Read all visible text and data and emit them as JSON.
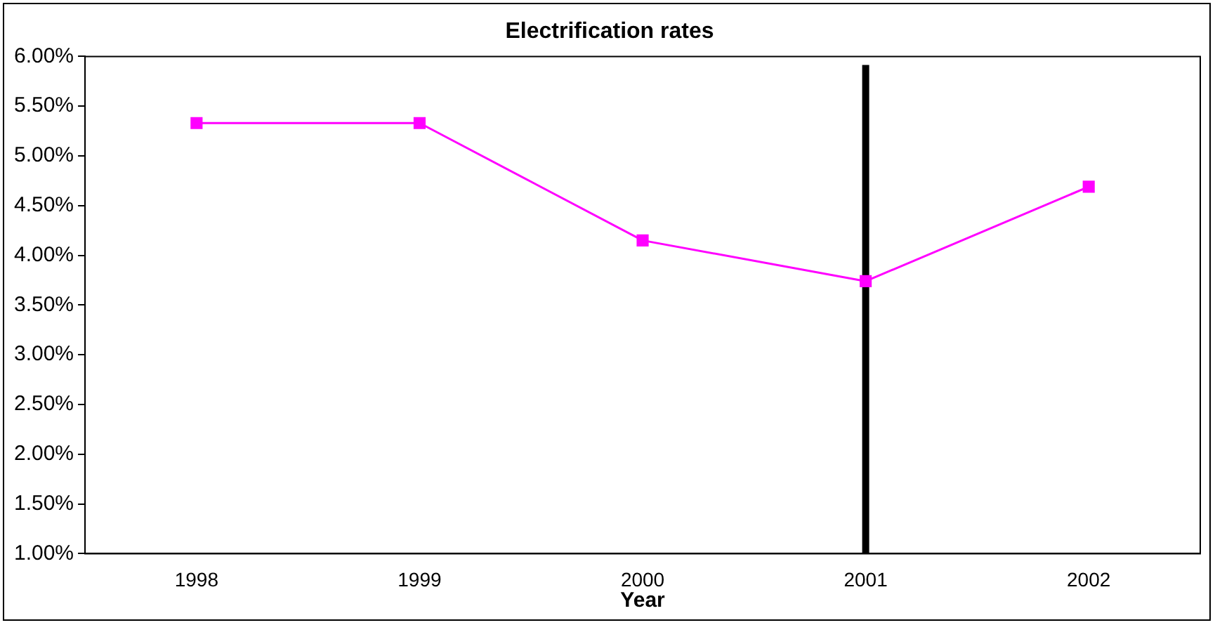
{
  "chart_data": {
    "type": "line",
    "title": "Electrification rates",
    "xlabel": "Year",
    "categories": [
      "1998",
      "1999",
      "2000",
      "2001",
      "2002"
    ],
    "series": [
      {
        "color": "#ff00ff",
        "values": [
          5.33,
          5.33,
          4.15,
          3.74,
          4.69
        ]
      }
    ],
    "ylim": [
      1,
      6
    ],
    "yticks": [
      {
        "value": 1,
        "label": "1.00%"
      },
      {
        "value": 1.5,
        "label": "1.50%"
      },
      {
        "value": 2,
        "label": "2.00%"
      },
      {
        "value": 2.5,
        "label": "2.50%"
      },
      {
        "value": 3,
        "label": "3.00%"
      },
      {
        "value": 3.5,
        "label": "3.50%"
      },
      {
        "value": 4,
        "label": "4.00%"
      },
      {
        "value": 4.5,
        "label": "4.50%"
      },
      {
        "value": 5,
        "label": "5.00%"
      },
      {
        "value": 5.5,
        "label": "5.50%"
      },
      {
        "value": 6,
        "label": "6.00%"
      }
    ],
    "ref_lines": [
      {
        "axis": "x",
        "value": "2001",
        "color": "#000000"
      }
    ],
    "marker": "square",
    "line_style": "solid",
    "grid": false,
    "legend": false
  }
}
